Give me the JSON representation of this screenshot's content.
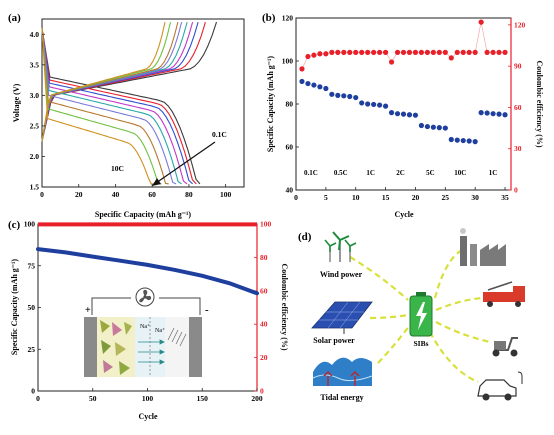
{
  "panels": {
    "a": {
      "label": "(a)"
    },
    "b": {
      "label": "(b)"
    },
    "c": {
      "label": "(c)"
    },
    "d": {
      "label": "(d)"
    }
  },
  "colors": {
    "red_axis": "#e8202a",
    "blue_marker": "#1f3f9e",
    "red_marker": "#e8202a",
    "cell_green": "#39b54a",
    "dashed_line": "#d8e03a"
  },
  "chart_data": [
    {
      "id": "a",
      "type": "line",
      "xlabel": "Specific Capacity (mAh g⁻¹)",
      "ylabel": "Voltage (V)",
      "xlim": [
        0,
        110
      ],
      "ylim": [
        1.5,
        4.25
      ],
      "xticks": [
        0,
        20,
        40,
        60,
        80,
        100
      ],
      "yticks": [
        1.5,
        2.0,
        2.5,
        3.0,
        3.5,
        4.0
      ],
      "annotations": [
        "0.1C",
        "10C"
      ],
      "series": [
        {
          "color": "#3c3c3c",
          "charge_end": 95,
          "discharge_end": 86,
          "plateau": 3.1
        },
        {
          "color": "#e8202a",
          "charge_end": 89,
          "discharge_end": 84,
          "plateau": 3.05
        },
        {
          "color": "#2f4fd0",
          "charge_end": 85,
          "discharge_end": 82,
          "plateau": 3.0
        },
        {
          "color": "#c038c8",
          "charge_end": 82,
          "discharge_end": 79,
          "plateau": 2.94
        },
        {
          "color": "#28a8a8",
          "charge_end": 79,
          "discharge_end": 76,
          "plateau": 2.88
        },
        {
          "color": "#7a7ad8",
          "charge_end": 76,
          "discharge_end": 73,
          "plateau": 2.8
        },
        {
          "color": "#b87830",
          "charge_end": 74,
          "discharge_end": 69,
          "plateau": 2.7
        },
        {
          "color": "#70c040",
          "charge_end": 70,
          "discharge_end": 65,
          "plateau": 2.58
        },
        {
          "color": "#d09020",
          "charge_end": 67,
          "discharge_end": 61,
          "plateau": 2.42
        }
      ]
    },
    {
      "id": "b",
      "type": "scatter",
      "xlabel": "Cycle",
      "ylabel": "Specific Capacity (mAh g⁻¹)",
      "ylabel_right": "Coulombic efficiency (%)",
      "xlim": [
        0,
        36
      ],
      "ylim": [
        40,
        120
      ],
      "ylim_right": [
        0,
        125
      ],
      "xticks": [
        0,
        5,
        10,
        15,
        20,
        25,
        30,
        35
      ],
      "yticks": [
        40,
        60,
        80,
        100,
        120
      ],
      "yticks_right": [
        0,
        30,
        60,
        90,
        120
      ],
      "rate_labels": [
        "0.1C",
        "0.5C",
        "1C",
        "2C",
        "5C",
        "10C",
        "1C"
      ],
      "rate_label_x": [
        2.5,
        7.5,
        12.5,
        17.5,
        22.5,
        27.5,
        33.0
      ],
      "capacity": [
        90.5,
        89.5,
        88.8,
        88,
        87.2,
        84.5,
        84,
        83.8,
        83.5,
        83,
        80.5,
        80,
        79.8,
        79.5,
        79,
        76,
        75.5,
        75.3,
        75,
        74.8,
        70,
        69.5,
        69.2,
        69,
        68.8,
        63.5,
        63.2,
        63,
        62.8,
        62.5,
        76,
        75.8,
        75.5,
        75.3,
        75
      ],
      "efficiency": [
        88,
        97,
        98,
        99,
        99,
        100,
        100,
        100,
        100,
        100,
        100,
        100,
        100,
        100,
        100,
        93,
        100,
        100,
        100,
        100,
        100,
        100,
        100,
        100,
        100,
        96,
        100,
        100,
        100,
        100,
        122,
        100,
        100,
        100,
        100
      ]
    },
    {
      "id": "c",
      "type": "line",
      "xlabel": "Cycle",
      "ylabel": "Specific Capacity (mAh g⁻¹)",
      "ylabel_right": "Coulombic efficiency (%)",
      "xlim": [
        0,
        200
      ],
      "ylim": [
        0,
        100
      ],
      "ylim_right": [
        0,
        100
      ],
      "xticks": [
        0,
        50,
        100,
        150,
        200
      ],
      "yticks": [
        0,
        25,
        50,
        75,
        100
      ],
      "yticks_right": [
        0,
        20,
        40,
        60,
        80,
        100
      ],
      "capacity": {
        "x": [
          0,
          25,
          50,
          75,
          100,
          125,
          150,
          175,
          200
        ],
        "y": [
          85,
          83,
          80.5,
          78,
          75.5,
          72.5,
          69,
          64.5,
          58.5
        ]
      },
      "efficiency": {
        "x": [
          0,
          200
        ],
        "y": [
          99.8,
          99.8
        ]
      },
      "inset": {
        "ion_labels": [
          "Na⁺",
          "Na⁺"
        ],
        "plus": "+",
        "minus": "-"
      }
    }
  ],
  "diagram": {
    "sources": [
      "Wind power",
      "Solar power",
      "Tidal energy"
    ],
    "center": "SIBs",
    "sinks": [
      "factory-icon",
      "truck-icon",
      "scooter-icon",
      "car-icon"
    ]
  }
}
